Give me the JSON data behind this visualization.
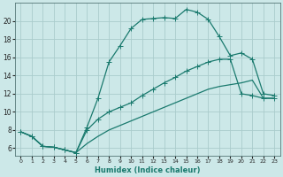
{
  "xlabel": "Humidex (Indice chaleur)",
  "x_ticks": [
    0,
    1,
    2,
    3,
    4,
    5,
    6,
    7,
    8,
    9,
    10,
    11,
    12,
    13,
    14,
    15,
    16,
    17,
    18,
    19,
    20,
    21,
    22,
    23
  ],
  "y_ticks": [
    6,
    8,
    10,
    12,
    14,
    16,
    18,
    20
  ],
  "ylim": [
    5.2,
    22.0
  ],
  "xlim": [
    -0.5,
    23.5
  ],
  "bg_color": "#cce8e8",
  "grid_color": "#aacccc",
  "line_color": "#1a7a6e",
  "line_top_x": [
    0,
    1,
    2,
    3,
    4,
    5,
    6,
    7,
    8,
    9,
    10,
    11,
    12,
    13,
    14,
    15,
    16,
    17,
    18,
    19,
    20,
    21,
    22,
    23
  ],
  "line_top_y": [
    7.8,
    7.3,
    6.2,
    6.1,
    5.8,
    5.5,
    8.3,
    11.5,
    15.5,
    17.3,
    19.2,
    20.2,
    20.3,
    20.4,
    20.3,
    21.3,
    21.0,
    20.2,
    18.3,
    16.2,
    16.5,
    15.8,
    12.0,
    11.8
  ],
  "line_mid_x": [
    0,
    1,
    2,
    3,
    4,
    5,
    6,
    7,
    8,
    9,
    10,
    11,
    12,
    13,
    14,
    15,
    16,
    17,
    18,
    19,
    20,
    21,
    22,
    23
  ],
  "line_mid_y": [
    7.8,
    7.3,
    6.2,
    6.1,
    5.8,
    5.5,
    8.0,
    9.2,
    10.0,
    10.5,
    11.0,
    11.8,
    12.5,
    13.2,
    13.8,
    14.5,
    15.0,
    15.5,
    15.8,
    15.8,
    12.0,
    11.8,
    11.5,
    11.5
  ],
  "line_bot_x": [
    0,
    1,
    2,
    3,
    4,
    5,
    6,
    7,
    8,
    9,
    10,
    11,
    12,
    13,
    14,
    15,
    16,
    17,
    18,
    19,
    20,
    21,
    22,
    23
  ],
  "line_bot_y": [
    7.8,
    7.3,
    6.2,
    6.1,
    5.8,
    5.5,
    6.5,
    7.3,
    8.0,
    8.5,
    9.0,
    9.5,
    10.0,
    10.5,
    11.0,
    11.5,
    12.0,
    12.5,
    12.8,
    13.0,
    13.2,
    13.5,
    11.5,
    11.5
  ]
}
